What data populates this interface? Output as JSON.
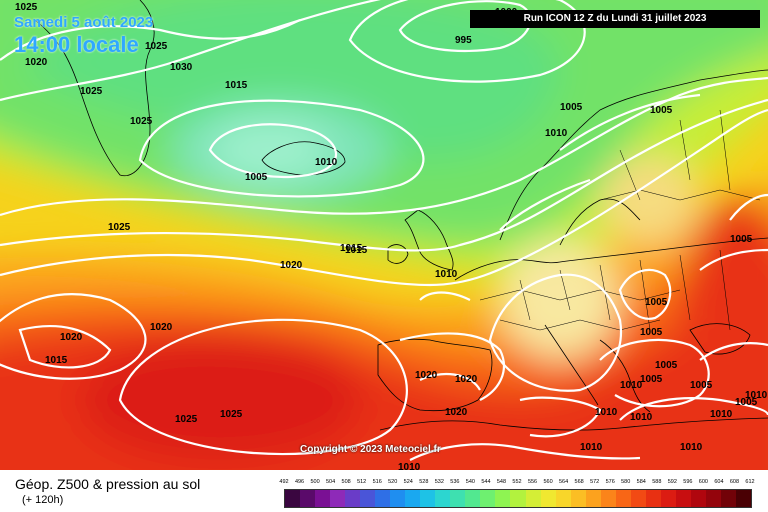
{
  "header": {
    "date": "Samedi 5 août 2023",
    "time": "14:00 locale",
    "run": "Run ICON 12 Z du Lundi 31 juillet 2023"
  },
  "copyright": "Copyright © 2023 Meteociel.fr",
  "legend": {
    "title": "Géop. Z500 & pression au sol",
    "lead": "(+ 120h)",
    "ticks": [
      "492",
      "496",
      "500",
      "504",
      "508",
      "512",
      "516",
      "520",
      "524",
      "528",
      "532",
      "536",
      "540",
      "544",
      "548",
      "552",
      "556",
      "560",
      "564",
      "568",
      "572",
      "576",
      "580",
      "584",
      "588",
      "592",
      "596",
      "600",
      "604",
      "608",
      "612"
    ],
    "colors": [
      "#3a0640",
      "#5a0a6a",
      "#7a1094",
      "#8e2ab8",
      "#6a3cc8",
      "#4a55d8",
      "#2f6fe6",
      "#1f8ef0",
      "#1aa8f0",
      "#1ec2e6",
      "#2cd6d0",
      "#3ee0b0",
      "#52e890",
      "#6ef070",
      "#8ef452",
      "#b2f23e",
      "#d4ee36",
      "#f0e830",
      "#f8d62a",
      "#fbbe24",
      "#fca21e",
      "#fb841a",
      "#f86616",
      "#f24a14",
      "#e83012",
      "#dc1c12",
      "#c80e10",
      "#b0060e",
      "#94040c",
      "#720208",
      "#4a0004"
    ]
  },
  "isobars": {
    "labels": [
      "1000",
      "995",
      "1025",
      "1030",
      "1025",
      "1025",
      "1015",
      "1020",
      "1025",
      "1005",
      "1010",
      "1005",
      "1010",
      "1005",
      "1025",
      "1020",
      "1015",
      "1010",
      "1015",
      "1020",
      "1020",
      "1015",
      "1020",
      "1020",
      "1025",
      "1025",
      "1020",
      "1010",
      "1005",
      "1005",
      "1005",
      "1005",
      "1010",
      "1005",
      "1010",
      "1005",
      "1005",
      "1010",
      "1010",
      "1010",
      "1010",
      "1010",
      "1010",
      "1010"
    ]
  },
  "colors": {
    "title_blue": "#2fa8ff",
    "isobar_line": "#ffffff",
    "coast_line": "#000000"
  }
}
